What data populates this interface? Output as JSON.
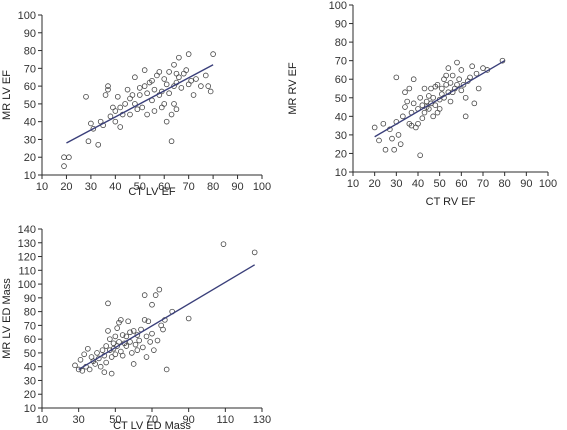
{
  "chart_data": [
    {
      "type": "scatter",
      "xlabel": "CT LV EF",
      "ylabel": "MR LV EF",
      "xlim": [
        10,
        100
      ],
      "ylim": [
        10,
        100
      ],
      "xticks": [
        10,
        20,
        30,
        40,
        50,
        60,
        70,
        80,
        90,
        100
      ],
      "yticks": [
        10,
        20,
        30,
        40,
        50,
        60,
        70,
        80,
        90,
        100
      ],
      "fit_line": [
        [
          20,
          28
        ],
        [
          80,
          72
        ]
      ],
      "grid": false,
      "points": [
        [
          19,
          20
        ],
        [
          19,
          15
        ],
        [
          21,
          20
        ],
        [
          28,
          54
        ],
        [
          29,
          29
        ],
        [
          30,
          39
        ],
        [
          31,
          36
        ],
        [
          33,
          27
        ],
        [
          34,
          40
        ],
        [
          35,
          38
        ],
        [
          36,
          55
        ],
        [
          37,
          60
        ],
        [
          37,
          58
        ],
        [
          38,
          43
        ],
        [
          39,
          48
        ],
        [
          40,
          46
        ],
        [
          40,
          40
        ],
        [
          41,
          54
        ],
        [
          42,
          48
        ],
        [
          42,
          37
        ],
        [
          43,
          44
        ],
        [
          44,
          50
        ],
        [
          45,
          58
        ],
        [
          46,
          53
        ],
        [
          46,
          44
        ],
        [
          47,
          55
        ],
        [
          48,
          65
        ],
        [
          48,
          50
        ],
        [
          49,
          47
        ],
        [
          50,
          59
        ],
        [
          50,
          55
        ],
        [
          51,
          48
        ],
        [
          52,
          69
        ],
        [
          52,
          60
        ],
        [
          53,
          56
        ],
        [
          53,
          44
        ],
        [
          54,
          62
        ],
        [
          55,
          63
        ],
        [
          55,
          52
        ],
        [
          56,
          58
        ],
        [
          56,
          46
        ],
        [
          57,
          66
        ],
        [
          58,
          68
        ],
        [
          58,
          55
        ],
        [
          59,
          57
        ],
        [
          59,
          48
        ],
        [
          60,
          64
        ],
        [
          60,
          50
        ],
        [
          61,
          61
        ],
        [
          61,
          40
        ],
        [
          62,
          68
        ],
        [
          62,
          56
        ],
        [
          63,
          44
        ],
        [
          63,
          29
        ],
        [
          64,
          72
        ],
        [
          64,
          60
        ],
        [
          64,
          50
        ],
        [
          65,
          67
        ],
        [
          65,
          62
        ],
        [
          65,
          47
        ],
        [
          66,
          76
        ],
        [
          66,
          65
        ],
        [
          67,
          59
        ],
        [
          68,
          67
        ],
        [
          69,
          69
        ],
        [
          70,
          78
        ],
        [
          70,
          61
        ],
        [
          71,
          63
        ],
        [
          72,
          55
        ],
        [
          73,
          64
        ],
        [
          75,
          60
        ],
        [
          77,
          66
        ],
        [
          78,
          60
        ],
        [
          79,
          57
        ],
        [
          80,
          78
        ]
      ]
    },
    {
      "type": "scatter",
      "xlabel": "CT RV EF",
      "ylabel": "MR RV EF",
      "xlim": [
        10,
        100
      ],
      "ylim": [
        10,
        100
      ],
      "xticks": [
        10,
        20,
        30,
        40,
        50,
        60,
        70,
        80,
        90,
        100
      ],
      "yticks": [
        10,
        20,
        30,
        40,
        50,
        60,
        70,
        80,
        90,
        100
      ],
      "fit_line": [
        [
          20,
          29
        ],
        [
          80,
          70
        ]
      ],
      "grid": false,
      "points": [
        [
          20,
          34
        ],
        [
          22,
          27
        ],
        [
          24,
          36
        ],
        [
          25,
          22
        ],
        [
          27,
          33
        ],
        [
          28,
          28
        ],
        [
          29,
          22
        ],
        [
          30,
          37
        ],
        [
          30,
          61
        ],
        [
          31,
          30
        ],
        [
          32,
          25
        ],
        [
          33,
          40
        ],
        [
          34,
          45
        ],
        [
          34,
          53
        ],
        [
          35,
          48
        ],
        [
          36,
          55
        ],
        [
          36,
          36
        ],
        [
          37,
          42
        ],
        [
          37,
          35
        ],
        [
          38,
          60
        ],
        [
          38,
          47
        ],
        [
          39,
          34
        ],
        [
          40,
          44
        ],
        [
          40,
          36
        ],
        [
          41,
          50
        ],
        [
          41,
          19
        ],
        [
          42,
          46
        ],
        [
          42,
          39
        ],
        [
          43,
          55
        ],
        [
          43,
          42
        ],
        [
          44,
          48
        ],
        [
          44,
          45
        ],
        [
          45,
          51
        ],
        [
          45,
          44
        ],
        [
          46,
          55
        ],
        [
          46,
          47
        ],
        [
          47,
          50
        ],
        [
          47,
          40
        ],
        [
          48,
          56
        ],
        [
          48,
          46
        ],
        [
          49,
          57
        ],
        [
          49,
          42
        ],
        [
          50,
          49
        ],
        [
          50,
          44
        ],
        [
          51,
          55
        ],
        [
          51,
          52
        ],
        [
          52,
          60
        ],
        [
          52,
          50
        ],
        [
          53,
          57
        ],
        [
          53,
          62
        ],
        [
          54,
          66
        ],
        [
          54,
          53
        ],
        [
          55,
          58
        ],
        [
          55,
          48
        ],
        [
          56,
          62
        ],
        [
          56,
          53
        ],
        [
          57,
          55
        ],
        [
          58,
          69
        ],
        [
          58,
          57
        ],
        [
          59,
          60
        ],
        [
          60,
          54
        ],
        [
          60,
          65
        ],
        [
          61,
          57
        ],
        [
          62,
          50
        ],
        [
          62,
          40
        ],
        [
          63,
          59
        ],
        [
          64,
          61
        ],
        [
          65,
          67
        ],
        [
          66,
          47
        ],
        [
          67,
          63
        ],
        [
          68,
          55
        ],
        [
          70,
          66
        ],
        [
          72,
          65
        ],
        [
          79,
          70
        ]
      ]
    },
    {
      "type": "scatter",
      "xlabel": "CT LV ED Mass",
      "ylabel": "MR LV ED Mass",
      "xlim": [
        10,
        130
      ],
      "ylim": [
        10,
        140
      ],
      "xticks": [
        10,
        30,
        50,
        70,
        90,
        110,
        130
      ],
      "yticks": [
        10,
        20,
        30,
        40,
        50,
        60,
        70,
        80,
        90,
        100,
        110,
        120,
        130,
        140
      ],
      "fit_line": [
        [
          30,
          38
        ],
        [
          126,
          114
        ]
      ],
      "grid": false,
      "points": [
        [
          28,
          41
        ],
        [
          30,
          38
        ],
        [
          31,
          45
        ],
        [
          32,
          37
        ],
        [
          33,
          49
        ],
        [
          34,
          40
        ],
        [
          35,
          53
        ],
        [
          36,
          38
        ],
        [
          37,
          47
        ],
        [
          38,
          44
        ],
        [
          39,
          42
        ],
        [
          40,
          50
        ],
        [
          41,
          46
        ],
        [
          42,
          40
        ],
        [
          43,
          52
        ],
        [
          44,
          48
        ],
        [
          44,
          36
        ],
        [
          45,
          43
        ],
        [
          45,
          55
        ],
        [
          46,
          66
        ],
        [
          46,
          86
        ],
        [
          47,
          52
        ],
        [
          47,
          60
        ],
        [
          48,
          47
        ],
        [
          48,
          35
        ],
        [
          49,
          57
        ],
        [
          49,
          53
        ],
        [
          50,
          49
        ],
        [
          50,
          62
        ],
        [
          51,
          68
        ],
        [
          51,
          55
        ],
        [
          52,
          72
        ],
        [
          52,
          58
        ],
        [
          53,
          51
        ],
        [
          53,
          74
        ],
        [
          54,
          63
        ],
        [
          54,
          48
        ],
        [
          55,
          57
        ],
        [
          56,
          62
        ],
        [
          56,
          55
        ],
        [
          57,
          73
        ],
        [
          58,
          58
        ],
        [
          58,
          65
        ],
        [
          59,
          50
        ],
        [
          60,
          42
        ],
        [
          60,
          66
        ],
        [
          61,
          56
        ],
        [
          62,
          63
        ],
        [
          62,
          52
        ],
        [
          63,
          59
        ],
        [
          64,
          67
        ],
        [
          65,
          54
        ],
        [
          66,
          74
        ],
        [
          66,
          92
        ],
        [
          67,
          62
        ],
        [
          67,
          47
        ],
        [
          68,
          73
        ],
        [
          69,
          58
        ],
        [
          70,
          85
        ],
        [
          70,
          64
        ],
        [
          71,
          52
        ],
        [
          72,
          92
        ],
        [
          73,
          59
        ],
        [
          74,
          96
        ],
        [
          75,
          70
        ],
        [
          76,
          67
        ],
        [
          77,
          74
        ],
        [
          78,
          38
        ],
        [
          81,
          80
        ],
        [
          90,
          75
        ],
        [
          109,
          129
        ],
        [
          126,
          123
        ]
      ]
    }
  ]
}
